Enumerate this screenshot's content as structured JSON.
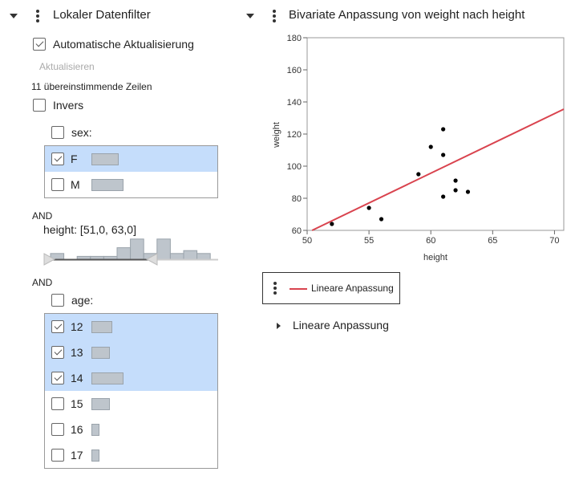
{
  "filter": {
    "title": "Lokaler Datenfilter",
    "auto_update": {
      "label": "Automatische Aktualisierung",
      "checked": true
    },
    "update_button": "Aktualisieren",
    "matching_rows": "11 übereinstimmende Zeilen",
    "invert": {
      "label": "Invers",
      "checked": false
    },
    "sex": {
      "label": "sex:",
      "items": [
        {
          "label": "F",
          "checked": true,
          "count": 34
        },
        {
          "label": "M",
          "checked": false,
          "count": 40
        }
      ]
    },
    "and1": "AND",
    "height": {
      "label": "height: [51,0, 63,0]",
      "range": [
        51,
        63
      ],
      "histogram": [
        2,
        0,
        1,
        1,
        1,
        4,
        7,
        2,
        7,
        2,
        3,
        2
      ]
    },
    "and2": "AND",
    "age": {
      "label": "age:",
      "items": [
        {
          "label": "12",
          "checked": true,
          "count": 8
        },
        {
          "label": "13",
          "checked": true,
          "count": 7
        },
        {
          "label": "14",
          "checked": true,
          "count": 12
        },
        {
          "label": "15",
          "checked": false,
          "count": 7
        },
        {
          "label": "16",
          "checked": false,
          "count": 3
        },
        {
          "label": "17",
          "checked": false,
          "count": 3
        }
      ]
    }
  },
  "report": {
    "title": "Bivariate Anpassung von weight nach height",
    "legend_label": "Lineare Anpassung",
    "outline_label": "Lineare Anpassung",
    "fit_color": "#d9434e"
  },
  "chart_data": {
    "type": "scatter",
    "xlabel": "height",
    "ylabel": "weight",
    "xlim": [
      50,
      70.75
    ],
    "ylim": [
      60,
      180
    ],
    "xticks": [
      "50",
      "55",
      "60",
      "65",
      "70"
    ],
    "yticks": [
      "60",
      "80",
      "100",
      "120",
      "140",
      "160",
      "180"
    ],
    "points": [
      [
        52,
        64
      ],
      [
        55,
        74
      ],
      [
        56,
        67
      ],
      [
        59,
        95
      ],
      [
        60,
        112
      ],
      [
        61,
        123
      ],
      [
        61,
        107
      ],
      [
        61,
        81
      ],
      [
        62,
        91
      ],
      [
        62,
        85
      ],
      [
        63,
        84
      ]
    ],
    "fit_line": {
      "name": "Lineare Anpassung",
      "from": [
        50.4,
        60
      ],
      "to": [
        70.75,
        135.5
      ]
    }
  }
}
